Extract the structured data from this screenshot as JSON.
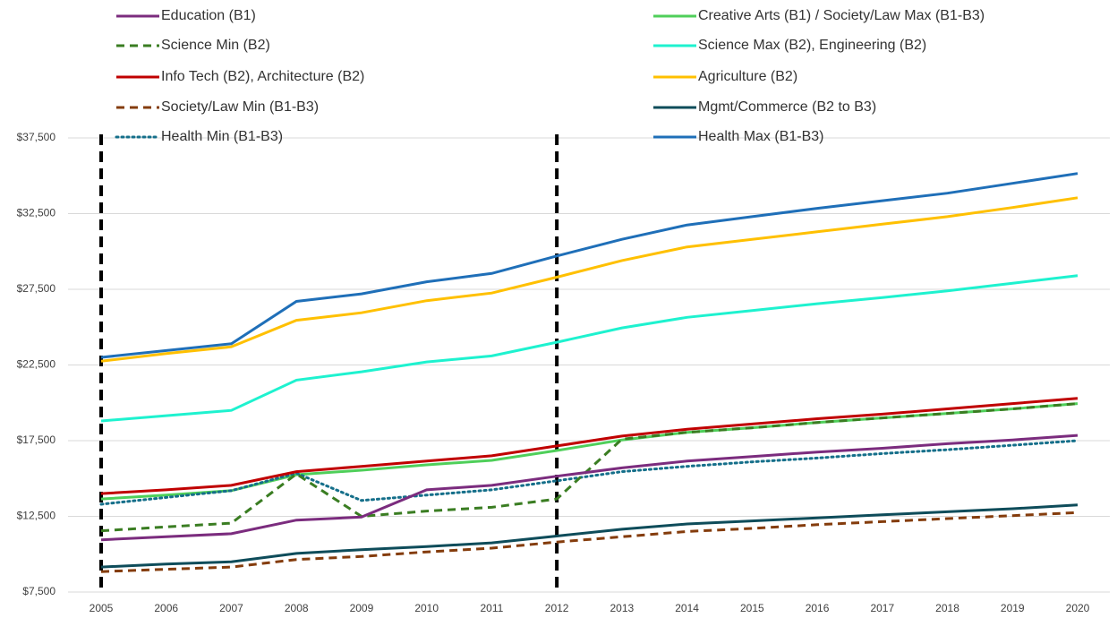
{
  "chart_data": {
    "type": "line",
    "categories": [
      "2005",
      "2006",
      "2007",
      "2008",
      "2009",
      "2010",
      "2011",
      "2012",
      "2013",
      "2014",
      "2015",
      "2016",
      "2017",
      "2018",
      "2019",
      "2020"
    ],
    "series": [
      {
        "name": "Education (B1)",
        "color": "#7b2c7e",
        "dash": "solid",
        "values": [
          10950,
          11150,
          11350,
          12250,
          12450,
          14250,
          14550,
          15150,
          15700,
          16150,
          16450,
          16750,
          17000,
          17300,
          17550,
          17850
        ]
      },
      {
        "name": "Science Min (B2)",
        "color": "#3a7d22",
        "dash": "dashed",
        "values": [
          11550,
          11800,
          12050,
          15300,
          12500,
          12850,
          13100,
          13650,
          17600,
          18050,
          18350,
          18700,
          19000,
          19300,
          19600,
          19950
        ]
      },
      {
        "name": "Info Tech (B2), Architecture (B2)",
        "color": "#c00000",
        "dash": "solid",
        "values": [
          14000,
          14250,
          14550,
          15450,
          15800,
          16150,
          16500,
          17150,
          17800,
          18250,
          18600,
          18950,
          19250,
          19600,
          19950,
          20300
        ]
      },
      {
        "name": "Society/Law Min (B1-B3)",
        "color": "#843c0c",
        "dash": "dashed",
        "values": [
          8850,
          9000,
          9150,
          9650,
          9850,
          10150,
          10400,
          10800,
          11150,
          11500,
          11700,
          11950,
          12150,
          12350,
          12550,
          12750
        ]
      },
      {
        "name": "Health Min (B1-B3)",
        "color": "#156f8a",
        "dash": "dotted",
        "values": [
          13300,
          13750,
          14200,
          15350,
          13550,
          13900,
          14250,
          14850,
          15450,
          15800,
          16100,
          16350,
          16650,
          16900,
          17200,
          17500
        ]
      },
      {
        "name": "Creative Arts (B1) / Society/Law Max (B1-B3)",
        "color": "#4fcf5a",
        "dash": "solid",
        "values": [
          13650,
          13900,
          14200,
          15250,
          15550,
          15900,
          16200,
          16850,
          17550,
          18050,
          18350,
          18700,
          19000,
          19300,
          19600,
          19950
        ]
      },
      {
        "name": "Science Max (B2), Engineering (B2)",
        "color": "#1ef2cf",
        "dash": "solid",
        "values": [
          18800,
          19150,
          19500,
          21500,
          22050,
          22700,
          23100,
          24000,
          24950,
          25650,
          26100,
          26550,
          26950,
          27400,
          27900,
          28400
        ]
      },
      {
        "name": "Agriculture (B2)",
        "color": "#ffc000",
        "dash": "solid",
        "values": [
          22750,
          23250,
          23700,
          25450,
          25950,
          26750,
          27250,
          28300,
          29400,
          30300,
          30800,
          31300,
          31800,
          32300,
          32900,
          33550
        ]
      },
      {
        "name": "Mgmt/Commerce (B2 to B3)",
        "color": "#0e4c5a",
        "dash": "solid",
        "values": [
          9150,
          9350,
          9500,
          10050,
          10300,
          10500,
          10750,
          11200,
          11650,
          12000,
          12200,
          12400,
          12600,
          12800,
          13000,
          13250
        ]
      },
      {
        "name": "Health Max (B1-B3)",
        "color": "#1f6fb8",
        "dash": "solid",
        "values": [
          23000,
          23450,
          23900,
          26700,
          27200,
          28000,
          28550,
          29700,
          30800,
          31750,
          32300,
          32850,
          33350,
          33850,
          34500,
          35150
        ]
      }
    ],
    "ylim": [
      7500,
      37500
    ],
    "yticks": [
      {
        "value": 7500,
        "label": "$7,500"
      },
      {
        "value": 12500,
        "label": "$12,500"
      },
      {
        "value": 17500,
        "label": "$17,500"
      },
      {
        "value": 22500,
        "label": "$22,500"
      },
      {
        "value": 27500,
        "label": "$27,500"
      },
      {
        "value": 32500,
        "label": "$32,500"
      },
      {
        "value": 37500,
        "label": "$37,500"
      }
    ],
    "grid": true,
    "reference_categories": [
      "2005",
      "2012"
    ]
  }
}
